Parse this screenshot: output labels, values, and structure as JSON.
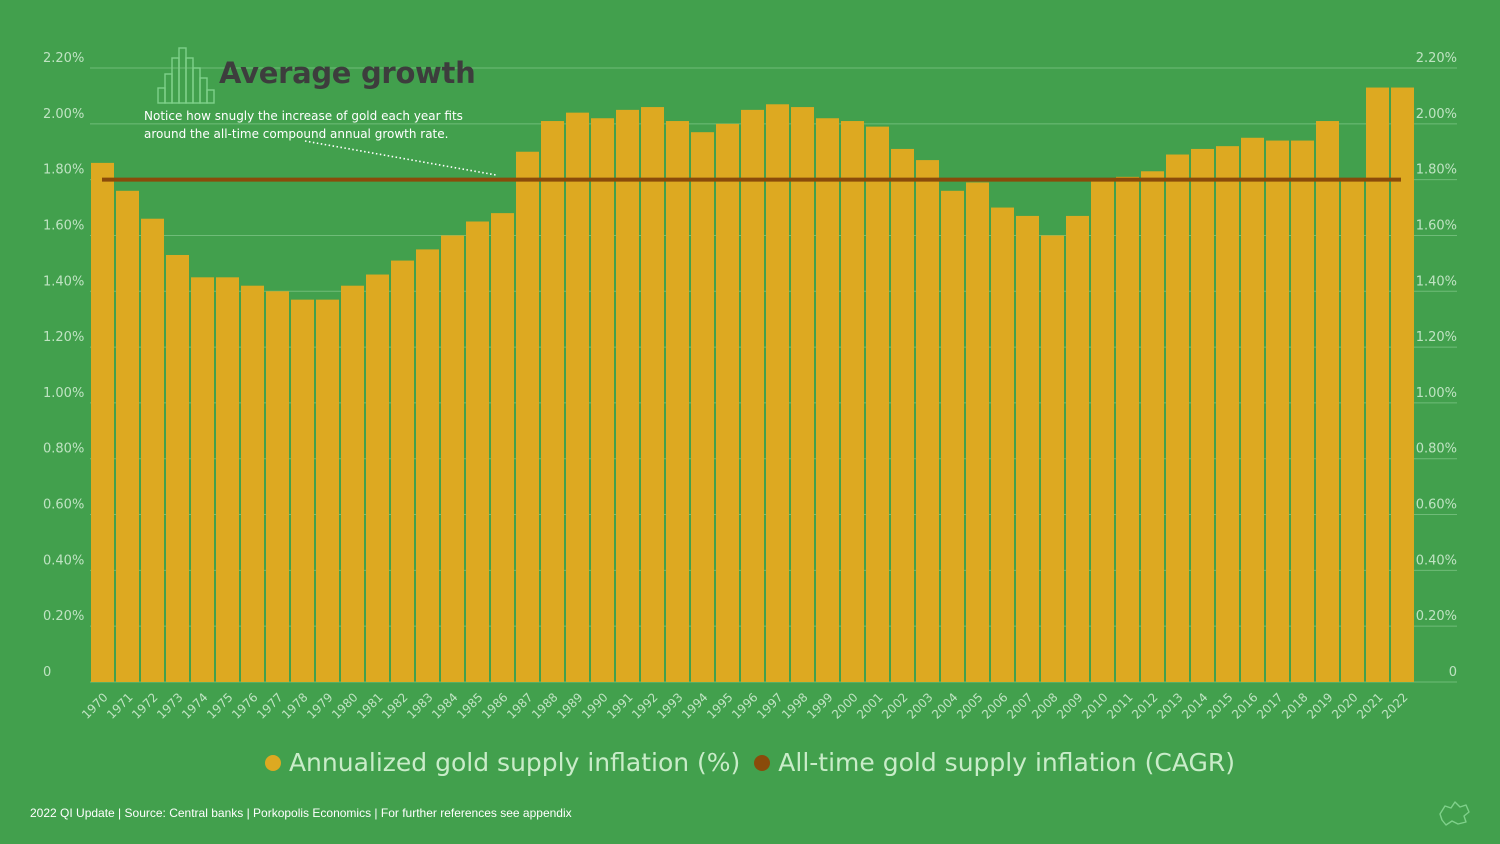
{
  "colors": {
    "background": "#42a04d",
    "bar": "#dda921",
    "line": "#8a4b0a",
    "grid": "#6fbc78",
    "tick_text": "#bfe3c2"
  },
  "header": {
    "title": "Average growth",
    "note": "Notice how snugly the increase of gold each year fits around the all-time compound annual growth rate."
  },
  "legend": {
    "bar_label": "Annualized gold supply inflation (%)",
    "line_label": "All-time gold supply inflation (CAGR)"
  },
  "footer": {
    "text": "2022 QI Update | Source: Central banks | Porkopolis Economics | For further references see appendix"
  },
  "icons": {
    "title_icon": "bar-chart-outline-icon",
    "corner_icon": "map-outline-icon"
  },
  "chart_data": {
    "type": "bar",
    "categories": [
      "1970",
      "1971",
      "1972",
      "1973",
      "1974",
      "1975",
      "1976",
      "1977",
      "1978",
      "1979",
      "1980",
      "1981",
      "1982",
      "1983",
      "1984",
      "1985",
      "1986",
      "1987",
      "1988",
      "1989",
      "1990",
      "1991",
      "1992",
      "1993",
      "1994",
      "1995",
      "1996",
      "1997",
      "1998",
      "1999",
      "2000",
      "2001",
      "2002",
      "2003",
      "2004",
      "2005",
      "2006",
      "2007",
      "2008",
      "2009",
      "2010",
      "2011",
      "2012",
      "2013",
      "2014",
      "2015",
      "2016",
      "2017",
      "2018",
      "2019",
      "2020",
      "2021",
      "2022"
    ],
    "series": [
      {
        "name": "Annualized gold supply inflation (%)",
        "type": "bar",
        "values": [
          1.86,
          1.76,
          1.66,
          1.53,
          1.45,
          1.45,
          1.42,
          1.4,
          1.37,
          1.37,
          1.42,
          1.46,
          1.51,
          1.55,
          1.6,
          1.65,
          1.68,
          1.9,
          2.01,
          2.04,
          2.02,
          2.05,
          2.06,
          2.01,
          1.97,
          2.0,
          2.05,
          2.07,
          2.06,
          2.02,
          2.01,
          1.99,
          1.91,
          1.87,
          1.76,
          1.79,
          1.7,
          1.67,
          1.6,
          1.67,
          1.8,
          1.81,
          1.83,
          1.89,
          1.91,
          1.92,
          1.95,
          1.94,
          1.94,
          2.01,
          1.8,
          2.13,
          2.13
        ]
      },
      {
        "name": "All-time gold supply inflation (CAGR)",
        "type": "line",
        "value": 1.8
      }
    ],
    "ylim": [
      0,
      2.2
    ],
    "yticks": [
      "0",
      "0.20%",
      "0.40%",
      "0.60%",
      "0.80%",
      "1.00%",
      "1.20%",
      "1.40%",
      "1.60%",
      "1.80%",
      "2.00%",
      "2.20%"
    ],
    "ytick_values": [
      0,
      0.2,
      0.4,
      0.6,
      0.8,
      1.0,
      1.2,
      1.4,
      1.6,
      1.8,
      2.0,
      2.2
    ],
    "secondary_y_axis": true,
    "grid": true,
    "legend_position": "bottom-center"
  }
}
